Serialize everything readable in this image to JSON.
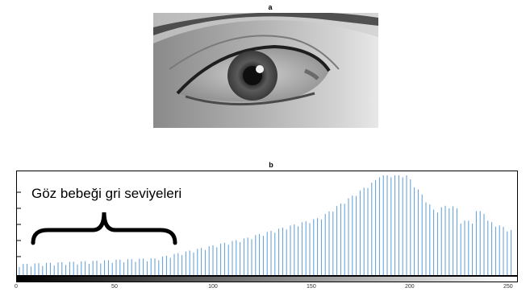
{
  "panel_a": {
    "label": "a"
  },
  "panel_b": {
    "label": "b",
    "annotation": "Göz bebeği gri seviyeleri"
  },
  "histogram": {
    "bar_color": "#5b9bd5",
    "x_range": [
      0,
      255
    ],
    "x_ticks": [
      "0",
      "50",
      "100",
      "150",
      "200",
      "250"
    ],
    "colorbar": [
      "#000000",
      "#ffffff"
    ]
  }
}
